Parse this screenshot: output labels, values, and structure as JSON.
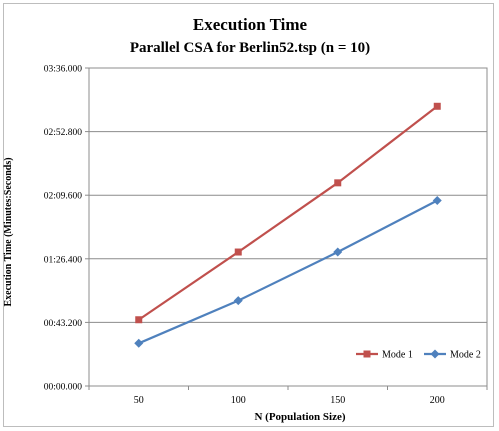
{
  "chart_data": {
    "type": "line",
    "title": "Execution Time",
    "subtitle": "Parallel CSA for Berlin52.tsp  (n = 10)",
    "xlabel": "N (Population Size)",
    "ylabel": "Execution Time (Minutes:Seconds)",
    "categories": [
      "50",
      "100",
      "150",
      "200"
    ],
    "yticks": [
      "00:00.000",
      "00:43.200",
      "01:26.400",
      "02:09.600",
      "02:52.800",
      "03:36.000"
    ],
    "ylim": [
      0,
      216
    ],
    "y_unit": "seconds",
    "grid": true,
    "legend_position": "bottom-right",
    "series": [
      {
        "name": "Mode 1",
        "values": [
          45,
          91,
          138,
          190
        ],
        "color": "#c0504d",
        "marker": "square"
      },
      {
        "name": "Mode 2",
        "values": [
          29,
          58,
          91,
          126
        ],
        "color": "#4f81bd",
        "marker": "diamond"
      }
    ]
  }
}
